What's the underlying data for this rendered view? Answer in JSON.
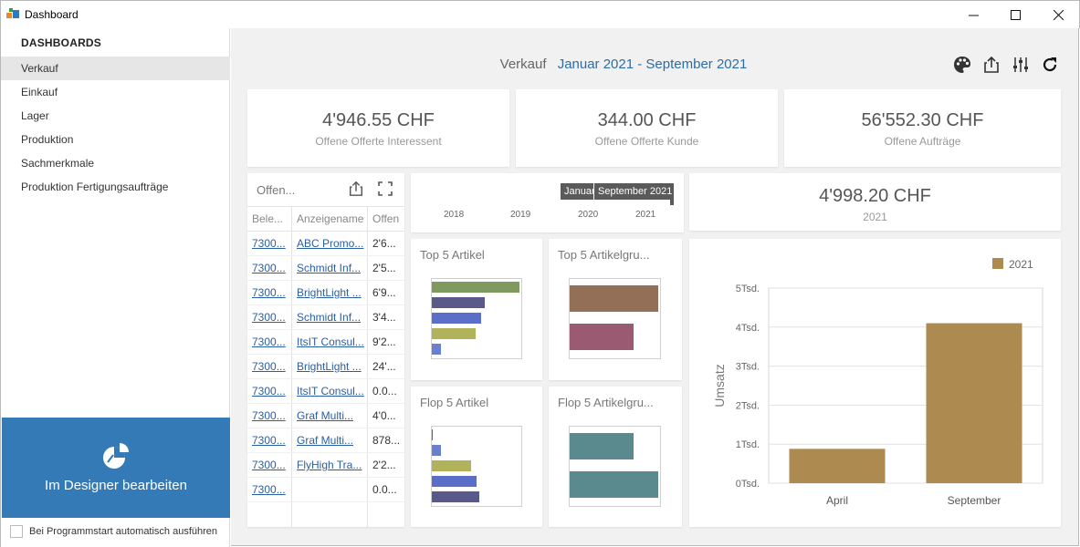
{
  "window": {
    "title": "Dashboard"
  },
  "sidebar": {
    "heading": "DASHBOARDS",
    "items": [
      {
        "label": "Verkauf",
        "active": true
      },
      {
        "label": "Einkauf"
      },
      {
        "label": "Lager"
      },
      {
        "label": "Produktion"
      },
      {
        "label": "Sachmerkmale"
      },
      {
        "label": "Produktion Fertigungsaufträge"
      }
    ],
    "designer_label": "Im Designer bearbeiten",
    "autostart_label": "Bei Programmstart automatisch ausführen",
    "autostart_checked": false
  },
  "dashboard": {
    "name": "Verkauf",
    "range": "Januar 2021 - September 2021",
    "toolbar_icons": [
      "palette-icon",
      "export-icon",
      "parameters-icon",
      "refresh-icon"
    ]
  },
  "kpis": [
    {
      "value": "4'946.55 CHF",
      "label": "Offene Offerte Interessent"
    },
    {
      "value": "344.00 CHF",
      "label": "Offene Offerte Kunde"
    },
    {
      "value": "56'552.30 CHF",
      "label": "Offene Aufträge"
    },
    {
      "value": "4'998.20 CHF",
      "label": "2021"
    }
  ],
  "grid": {
    "title": "Offen...",
    "columns": [
      "Bele...",
      "Anzeigename",
      "Offen"
    ],
    "rows": [
      [
        "7300...",
        "ABC Promo...",
        "2'6..."
      ],
      [
        "7300...",
        "Schmidt Inf...",
        "2'5..."
      ],
      [
        "7300...",
        "BrightLight ...",
        "6'9..."
      ],
      [
        "7300...",
        "Schmidt Inf...",
        "3'4..."
      ],
      [
        "7300...",
        "ItsIT Consul...",
        "9'2..."
      ],
      [
        "7300...",
        "BrightLight ...",
        "24'..."
      ],
      [
        "7300...",
        "ItsIT Consul...",
        "0.0..."
      ],
      [
        "7300...",
        "Graf Multi...",
        "4'0..."
      ],
      [
        "7300...",
        "Graf Multi...",
        "878..."
      ],
      [
        "7300...",
        "FlyHigh Tra...",
        "2'2..."
      ],
      [
        "7300...",
        "",
        "0.0..."
      ]
    ]
  },
  "range_filter": {
    "ticks": [
      "2018",
      "2019",
      "2020",
      "2021"
    ],
    "start_label": "Januar",
    "end_label": "September 2021"
  },
  "mini_charts": [
    {
      "title": "Top 5 Artikel",
      "values": [
        1.0,
        0.6,
        0.56,
        0.5,
        0.1
      ],
      "colors": [
        "#7f9a5e",
        "#5a5a8a",
        "#5b6fc8",
        "#b0b35a",
        "#6b7fd0"
      ]
    },
    {
      "title": "Top 5 Artikelgru...",
      "values": [
        1.0,
        0.72
      ],
      "colors": [
        "#946f58",
        "#9a5a72"
      ]
    },
    {
      "title": "Flop 5 Artikel",
      "values": [
        0.01,
        0.1,
        0.45,
        0.51,
        0.54
      ],
      "colors": [
        "#c04040",
        "#6b7fd0",
        "#b0b35a",
        "#5b6fc8",
        "#5a5a8a"
      ]
    },
    {
      "title": "Flop 5 Artikelgru...",
      "values": [
        0.72,
        1.0
      ],
      "colors": [
        "#5a8a8e",
        "#5a8a8e"
      ]
    }
  ],
  "chart_data": {
    "type": "bar",
    "categories": [
      "April",
      "September"
    ],
    "series": [
      {
        "name": "2021",
        "values": [
          880,
          4100
        ],
        "color": "#ad8a50"
      }
    ],
    "ylabel": "Umsatz",
    "ylim": [
      0,
      5000
    ],
    "yticks": [
      "0Tsd.",
      "1Tsd.",
      "2Tsd.",
      "3Tsd.",
      "4Tsd.",
      "5Tsd."
    ],
    "legend": "top-right",
    "grid": true
  }
}
